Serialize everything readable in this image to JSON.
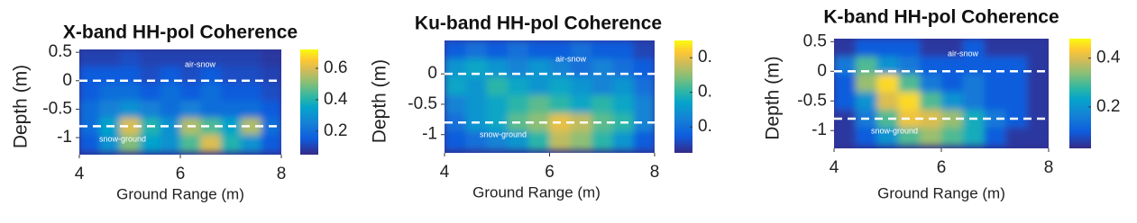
{
  "chart_data": [
    {
      "type": "heatmap",
      "title": "X-band HH-pol Coherence",
      "xlabel": "Ground Range (m)",
      "ylabel": "Depth (m)",
      "xlim": [
        4,
        8
      ],
      "xticks": [
        4,
        6,
        8
      ],
      "ylim": [
        -1.3,
        0.55
      ],
      "yticks": [
        0.5,
        0,
        -0.5,
        -1
      ],
      "x": [
        4.2,
        4.6,
        5.0,
        5.4,
        5.8,
        6.2,
        6.6,
        7.0,
        7.4,
        7.8
      ],
      "y": [
        0.4,
        0.1,
        -0.2,
        -0.5,
        -0.8,
        -1.1
      ],
      "z": [
        [
          0.1,
          0.1,
          0.12,
          0.1,
          0.1,
          0.1,
          0.1,
          0.1,
          0.1,
          0.08
        ],
        [
          0.15,
          0.15,
          0.15,
          0.12,
          0.15,
          0.12,
          0.15,
          0.12,
          0.12,
          0.1
        ],
        [
          0.15,
          0.2,
          0.2,
          0.15,
          0.2,
          0.15,
          0.2,
          0.15,
          0.15,
          0.12
        ],
        [
          0.2,
          0.25,
          0.3,
          0.25,
          0.2,
          0.25,
          0.2,
          0.2,
          0.2,
          0.15
        ],
        [
          0.2,
          0.35,
          0.6,
          0.4,
          0.3,
          0.55,
          0.45,
          0.35,
          0.55,
          0.2
        ],
        [
          0.15,
          0.3,
          0.5,
          0.35,
          0.3,
          0.45,
          0.6,
          0.4,
          0.3,
          0.15
        ]
      ],
      "clim": [
        0.05,
        0.72
      ],
      "cticks": [
        0.6,
        0.4,
        0.2
      ],
      "hlines": [
        0,
        -0.8
      ],
      "annotations": [
        "air-snow",
        "snow-ground"
      ]
    },
    {
      "type": "heatmap",
      "title": "Ku-band HH-pol Coherence",
      "xlabel": "Ground Range (m)",
      "ylabel": "Depth (m)",
      "xlim": [
        4,
        8
      ],
      "xticks": [
        4,
        6,
        8
      ],
      "ylim": [
        -1.3,
        0.55
      ],
      "yticks": [
        0,
        -0.5,
        -1
      ],
      "x": [
        4.2,
        4.6,
        5.0,
        5.4,
        5.8,
        6.2,
        6.6,
        7.0,
        7.4,
        7.8
      ],
      "y": [
        0.4,
        0.1,
        -0.2,
        -0.5,
        -0.8,
        -1.1
      ],
      "z": [
        [
          0.15,
          0.2,
          0.15,
          0.2,
          0.15,
          0.15,
          0.2,
          0.15,
          0.15,
          0.1
        ],
        [
          0.3,
          0.35,
          0.3,
          0.25,
          0.3,
          0.25,
          0.2,
          0.25,
          0.2,
          0.15
        ],
        [
          0.35,
          0.3,
          0.4,
          0.35,
          0.3,
          0.35,
          0.3,
          0.25,
          0.3,
          0.2
        ],
        [
          0.25,
          0.3,
          0.35,
          0.4,
          0.45,
          0.4,
          0.35,
          0.4,
          0.35,
          0.25
        ],
        [
          0.2,
          0.3,
          0.35,
          0.45,
          0.5,
          0.6,
          0.55,
          0.45,
          0.4,
          0.25
        ],
        [
          0.15,
          0.2,
          0.25,
          0.3,
          0.4,
          0.55,
          0.5,
          0.4,
          0.3,
          0.15
        ]
      ],
      "clim": [
        0.05,
        0.7
      ],
      "cticks": [
        {
          "value": 0.6,
          "label": "0."
        },
        {
          "value": 0.4,
          "label": "0."
        },
        {
          "value": 0.2,
          "label": "0."
        }
      ],
      "hlines": [
        0,
        -0.8
      ],
      "annotations": [
        "air-snow",
        "snow-ground"
      ]
    },
    {
      "type": "heatmap",
      "title": "K-band HH-pol Coherence",
      "xlabel": "Ground Range (m)",
      "ylabel": "Depth (m)",
      "xlim": [
        4,
        8
      ],
      "xticks": [
        4,
        6,
        8
      ],
      "ylim": [
        -1.3,
        0.55
      ],
      "yticks": [
        0.5,
        0,
        -0.5,
        -1
      ],
      "x": [
        4.2,
        4.6,
        5.0,
        5.4,
        5.8,
        6.2,
        6.6,
        7.0,
        7.4,
        7.8
      ],
      "y": [
        0.4,
        0.1,
        -0.2,
        -0.5,
        -0.8,
        -1.1
      ],
      "z": [
        [
          0.05,
          0.1,
          0.1,
          0.1,
          0.05,
          0.05,
          0.1,
          0.05,
          0.05,
          0.05
        ],
        [
          0.15,
          0.3,
          0.2,
          0.15,
          0.1,
          0.1,
          0.1,
          0.1,
          0.1,
          0.05
        ],
        [
          0.1,
          0.35,
          0.45,
          0.3,
          0.15,
          0.1,
          0.15,
          0.1,
          0.1,
          0.05
        ],
        [
          0.1,
          0.2,
          0.4,
          0.45,
          0.3,
          0.2,
          0.15,
          0.1,
          0.1,
          0.05
        ],
        [
          0.05,
          0.15,
          0.3,
          0.42,
          0.4,
          0.35,
          0.25,
          0.15,
          0.1,
          0.05
        ],
        [
          0.05,
          0.1,
          0.2,
          0.3,
          0.35,
          0.3,
          0.25,
          0.1,
          0.05,
          0.05
        ]
      ],
      "clim": [
        0.03,
        0.48
      ],
      "cticks": [
        0.4,
        0.2
      ],
      "hlines": [
        0,
        -0.8
      ],
      "annotations": [
        "air-snow",
        "snow-ground"
      ]
    }
  ]
}
